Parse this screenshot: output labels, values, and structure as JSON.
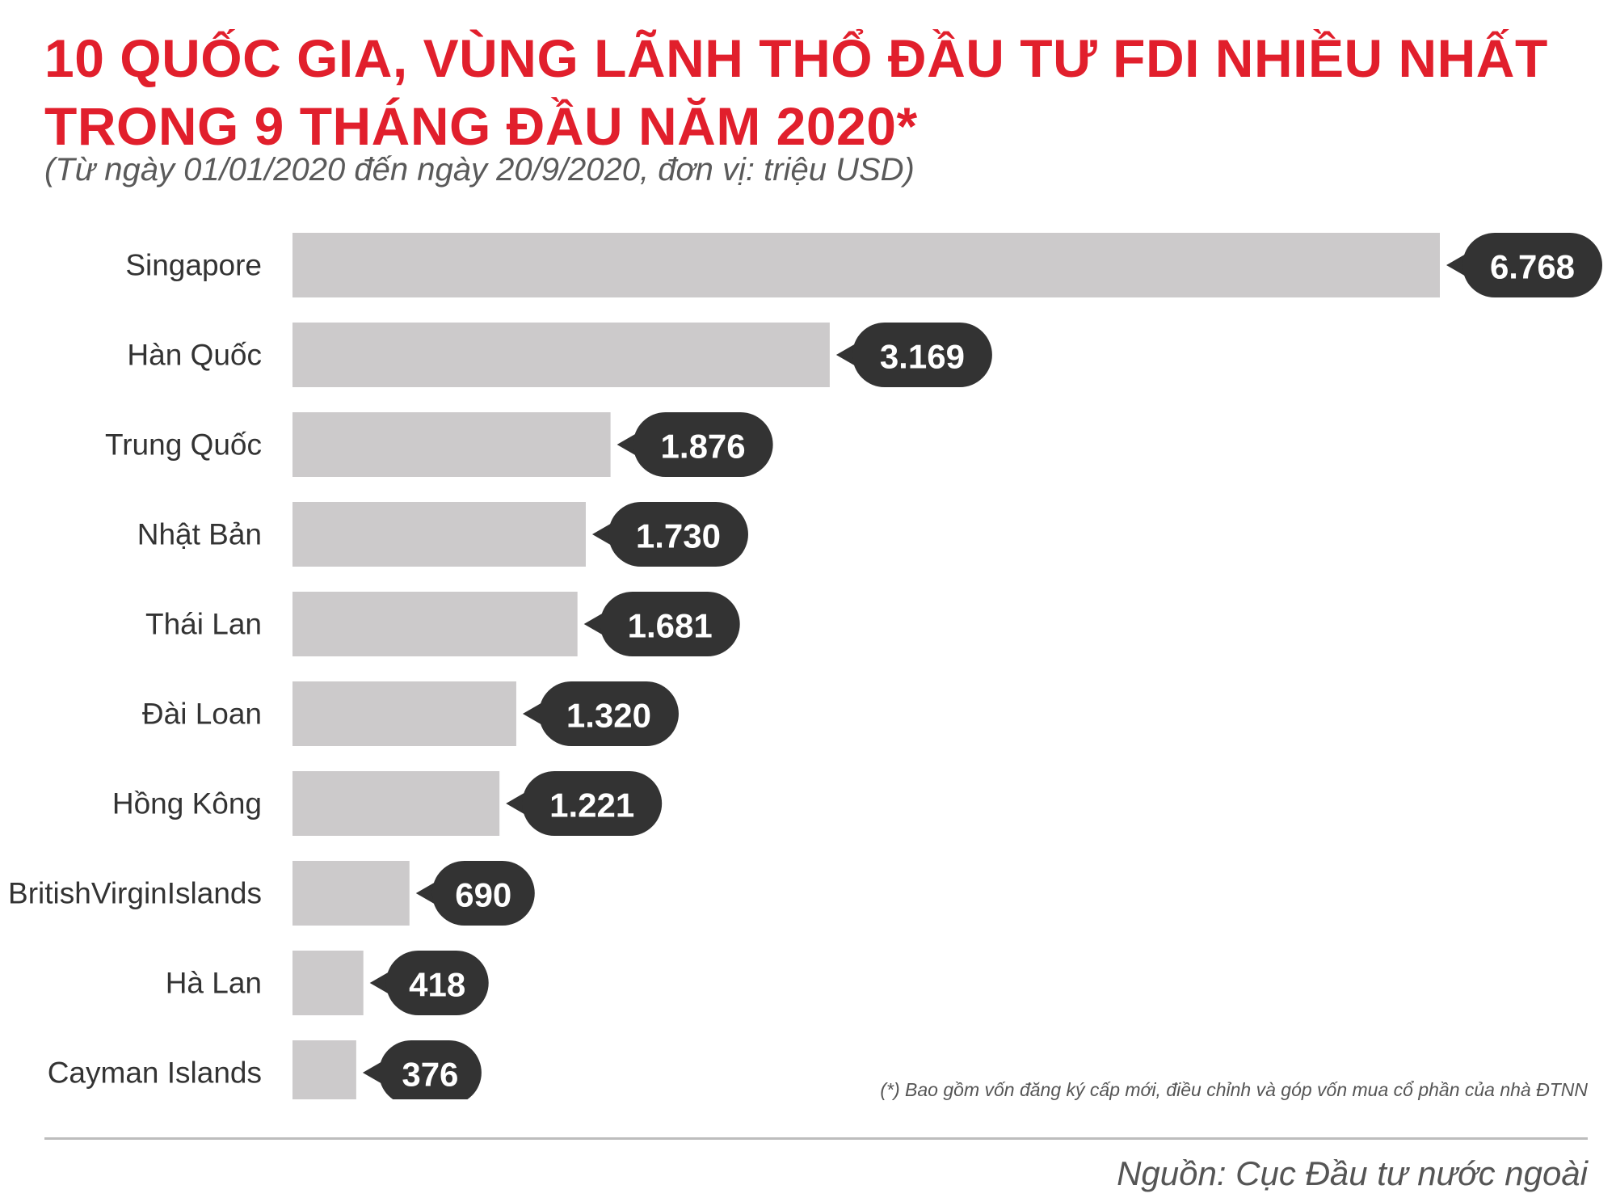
{
  "header": {
    "title_line1": "10 QUỐC GIA, VÙNG LÃNH THỔ ĐẦU TƯ FDI NHIỀU NHẤT",
    "title_line2": "TRONG 9 THÁNG ĐẦU NĂM 2020*",
    "subtitle": "(Từ ngày 01/01/2020 đến ngày 20/9/2020, đơn vị: triệu USD)"
  },
  "colors": {
    "title": "#e11f2c",
    "bar": "#cccacb",
    "badge": "#333333",
    "badge_text": "#ffffff"
  },
  "chart_data": {
    "type": "bar",
    "orientation": "horizontal",
    "categories": [
      "Singapore",
      "Hàn Quốc",
      "Trung Quốc",
      "Nhật Bản",
      "Thái Lan",
      "Đài Loan",
      "Hồng Kông",
      "BritishVirginIslands",
      "Hà Lan",
      "Cayman Islands"
    ],
    "values": [
      6768,
      3169,
      1876,
      1730,
      1681,
      1320,
      1221,
      690,
      418,
      376
    ],
    "value_labels": [
      "6.768",
      "3.169",
      "1.876",
      "1.730",
      "1.681",
      "1.320",
      "1.221",
      "690",
      "418",
      "376"
    ],
    "xlim": [
      0,
      6768
    ],
    "grid": false,
    "legend": "none"
  },
  "footer": {
    "footnote": "(*) Bao gồm vốn đăng ký cấp mới, điều chỉnh và góp vốn mua cổ phần của nhà ĐTNN",
    "source": "Nguồn: Cục Đầu tư nước ngoài"
  }
}
